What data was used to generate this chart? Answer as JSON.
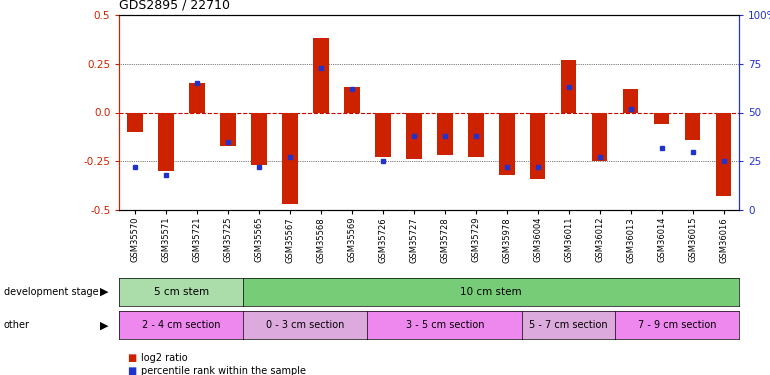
{
  "title": "GDS2895 / 22710",
  "samples": [
    "GSM35570",
    "GSM35571",
    "GSM35721",
    "GSM35725",
    "GSM35565",
    "GSM35567",
    "GSM35568",
    "GSM35569",
    "GSM35726",
    "GSM35727",
    "GSM35728",
    "GSM35729",
    "GSM35978",
    "GSM36004",
    "GSM36011",
    "GSM36012",
    "GSM36013",
    "GSM36014",
    "GSM36015",
    "GSM36016"
  ],
  "log2_ratio": [
    -0.1,
    -0.3,
    0.15,
    -0.17,
    -0.27,
    -0.47,
    0.38,
    0.13,
    -0.23,
    -0.24,
    -0.22,
    -0.23,
    -0.32,
    -0.34,
    0.27,
    -0.25,
    0.12,
    -0.06,
    -0.14,
    -0.43
  ],
  "percentile": [
    22,
    18,
    65,
    35,
    22,
    27,
    73,
    62,
    25,
    38,
    38,
    38,
    22,
    22,
    63,
    27,
    52,
    32,
    30,
    25
  ],
  "dev_stage_groups": [
    {
      "label": "5 cm stem",
      "start": 0,
      "end": 4,
      "color": "#aaddaa"
    },
    {
      "label": "10 cm stem",
      "start": 4,
      "end": 20,
      "color": "#77cc77"
    }
  ],
  "other_groups": [
    {
      "label": "2 - 4 cm section",
      "start": 0,
      "end": 4,
      "color": "#ee88ee"
    },
    {
      "label": "0 - 3 cm section",
      "start": 4,
      "end": 8,
      "color": "#ddaadd"
    },
    {
      "label": "3 - 5 cm section",
      "start": 8,
      "end": 13,
      "color": "#ee88ee"
    },
    {
      "label": "5 - 7 cm section",
      "start": 13,
      "end": 16,
      "color": "#ddaadd"
    },
    {
      "label": "7 - 9 cm section",
      "start": 16,
      "end": 20,
      "color": "#ee88ee"
    }
  ],
  "ylim": [
    -0.5,
    0.5
  ],
  "yticks_left": [
    -0.5,
    -0.25,
    0.0,
    0.25,
    0.5
  ],
  "yticks_right": [
    0,
    25,
    50,
    75,
    100
  ],
  "bar_color": "#cc2200",
  "dot_color": "#2233cc",
  "zero_line_color": "#cc0000"
}
